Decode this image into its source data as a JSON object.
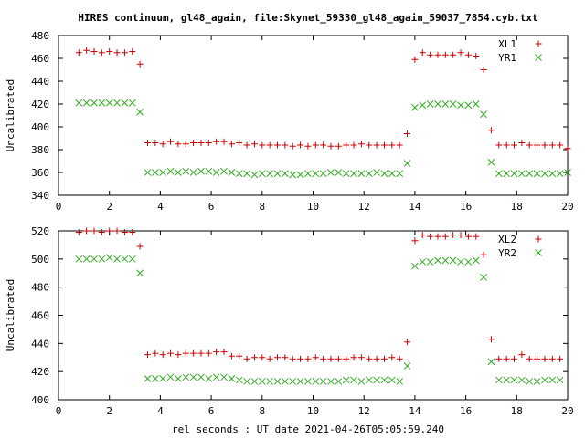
{
  "figure": {
    "title": "HIRES continuum, gl48_again, file:Skynet_59330_gl48_again_59037_7854.cyb.txt",
    "xlabel": "rel seconds : UT date 2021-04-26T05:05:59.240"
  },
  "colors": {
    "red_series": "#cc0000",
    "green_series": "#33aa22",
    "frame": "#000000"
  },
  "chart_data": [
    {
      "type": "scatter",
      "ylabel": "Uncalibrated",
      "xlim": [
        0,
        20
      ],
      "ylim": [
        340,
        480
      ],
      "xticks": [
        0,
        2,
        4,
        6,
        8,
        10,
        12,
        14,
        16,
        18,
        20
      ],
      "yticks": [
        340,
        360,
        380,
        400,
        420,
        440,
        460,
        480
      ],
      "legend_position": "top-right",
      "series": [
        {
          "name": "XL1",
          "marker": "plus",
          "color": "#cc0000",
          "x": [
            0.8,
            1.1,
            1.4,
            1.7,
            2.0,
            2.3,
            2.6,
            2.9,
            3.2,
            3.5,
            3.8,
            4.1,
            4.4,
            4.7,
            5.0,
            5.3,
            5.6,
            5.9,
            6.2,
            6.5,
            6.8,
            7.1,
            7.4,
            7.7,
            8.0,
            8.3,
            8.6,
            8.9,
            9.2,
            9.5,
            9.8,
            10.1,
            10.4,
            10.7,
            11.0,
            11.3,
            11.6,
            11.9,
            12.2,
            12.5,
            12.8,
            13.1,
            13.4,
            13.7,
            14.0,
            14.3,
            14.6,
            14.9,
            15.2,
            15.5,
            15.8,
            16.1,
            16.4,
            16.7,
            17.0,
            17.3,
            17.6,
            17.9,
            18.2,
            18.5,
            18.8,
            19.1,
            19.4,
            19.7,
            20.0
          ],
          "y": [
            465,
            467,
            466,
            465,
            466,
            465,
            465,
            466,
            455,
            386,
            386,
            385,
            387,
            385,
            385,
            386,
            386,
            386,
            387,
            387,
            385,
            386,
            384,
            385,
            384,
            384,
            384,
            384,
            383,
            384,
            383,
            384,
            384,
            383,
            383,
            384,
            384,
            385,
            384,
            384,
            384,
            384,
            384,
            394,
            459,
            465,
            463,
            463,
            463,
            463,
            465,
            463,
            462,
            450,
            397,
            384,
            384,
            384,
            386,
            384,
            384,
            384,
            384,
            384,
            381
          ]
        },
        {
          "name": "YR1",
          "marker": "cross",
          "color": "#33aa22",
          "x": [
            0.8,
            1.1,
            1.4,
            1.7,
            2.0,
            2.3,
            2.6,
            2.9,
            3.2,
            3.5,
            3.8,
            4.1,
            4.4,
            4.7,
            5.0,
            5.3,
            5.6,
            5.9,
            6.2,
            6.5,
            6.8,
            7.1,
            7.4,
            7.7,
            8.0,
            8.3,
            8.6,
            8.9,
            9.2,
            9.5,
            9.8,
            10.1,
            10.4,
            10.7,
            11.0,
            11.3,
            11.6,
            11.9,
            12.2,
            12.5,
            12.8,
            13.1,
            13.4,
            13.7,
            14.0,
            14.3,
            14.6,
            14.9,
            15.2,
            15.5,
            15.8,
            16.1,
            16.4,
            16.7,
            17.0,
            17.3,
            17.6,
            17.9,
            18.2,
            18.5,
            18.8,
            19.1,
            19.4,
            19.7,
            20.0
          ],
          "y": [
            421,
            421,
            421,
            421,
            421,
            421,
            421,
            421,
            413,
            360,
            360,
            360,
            361,
            360,
            361,
            360,
            361,
            361,
            360,
            361,
            360,
            359,
            359,
            358,
            359,
            359,
            359,
            359,
            358,
            358,
            359,
            359,
            359,
            360,
            360,
            359,
            359,
            359,
            359,
            360,
            359,
            359,
            359,
            368,
            417,
            419,
            420,
            420,
            420,
            420,
            419,
            419,
            420,
            411,
            369,
            359,
            359,
            359,
            359,
            359,
            359,
            359,
            359,
            359,
            360
          ]
        }
      ]
    },
    {
      "type": "scatter",
      "ylabel": "Uncalibrated",
      "xlim": [
        0,
        20
      ],
      "ylim": [
        400,
        520
      ],
      "xticks": [
        0,
        2,
        4,
        6,
        8,
        10,
        12,
        14,
        16,
        18,
        20
      ],
      "yticks": [
        400,
        420,
        440,
        460,
        480,
        500,
        520
      ],
      "legend_position": "top-right",
      "series": [
        {
          "name": "XL2",
          "marker": "plus",
          "color": "#cc0000",
          "x": [
            0.8,
            1.1,
            1.4,
            1.7,
            2.0,
            2.3,
            2.6,
            2.9,
            3.2,
            3.5,
            3.8,
            4.1,
            4.4,
            4.7,
            5.0,
            5.3,
            5.6,
            5.9,
            6.2,
            6.5,
            6.8,
            7.1,
            7.4,
            7.7,
            8.0,
            8.3,
            8.6,
            8.9,
            9.2,
            9.5,
            9.8,
            10.1,
            10.4,
            10.7,
            11.0,
            11.3,
            11.6,
            11.9,
            12.2,
            12.5,
            12.8,
            13.1,
            13.4,
            13.7,
            14.0,
            14.3,
            14.6,
            14.9,
            15.2,
            15.5,
            15.8,
            16.1,
            16.4,
            16.7,
            17.0,
            17.3,
            17.6,
            17.9,
            18.2,
            18.5,
            18.8,
            19.1,
            19.4,
            19.7
          ],
          "y": [
            519,
            520,
            520,
            519,
            520,
            520,
            519,
            519,
            509,
            432,
            433,
            432,
            433,
            432,
            433,
            433,
            433,
            433,
            434,
            434,
            431,
            431,
            429,
            430,
            430,
            429,
            430,
            430,
            429,
            429,
            429,
            430,
            429,
            429,
            429,
            429,
            430,
            430,
            429,
            429,
            429,
            430,
            429,
            441,
            513,
            517,
            516,
            516,
            516,
            517,
            517,
            516,
            516,
            503,
            443,
            429,
            429,
            429,
            432,
            429,
            429,
            429,
            429,
            429
          ]
        },
        {
          "name": "YR2",
          "marker": "cross",
          "color": "#33aa22",
          "x": [
            0.8,
            1.1,
            1.4,
            1.7,
            2.0,
            2.3,
            2.6,
            2.9,
            3.2,
            3.5,
            3.8,
            4.1,
            4.4,
            4.7,
            5.0,
            5.3,
            5.6,
            5.9,
            6.2,
            6.5,
            6.8,
            7.1,
            7.4,
            7.7,
            8.0,
            8.3,
            8.6,
            8.9,
            9.2,
            9.5,
            9.8,
            10.1,
            10.4,
            10.7,
            11.0,
            11.3,
            11.6,
            11.9,
            12.2,
            12.5,
            12.8,
            13.1,
            13.4,
            13.7,
            14.0,
            14.3,
            14.6,
            14.9,
            15.2,
            15.5,
            15.8,
            16.1,
            16.4,
            16.7,
            17.0,
            17.3,
            17.6,
            17.9,
            18.2,
            18.5,
            18.8,
            19.1,
            19.4,
            19.7
          ],
          "y": [
            500,
            500,
            500,
            500,
            501,
            500,
            500,
            500,
            490,
            415,
            415,
            415,
            416,
            415,
            416,
            416,
            416,
            415,
            416,
            416,
            415,
            414,
            413,
            413,
            413,
            413,
            413,
            413,
            413,
            413,
            413,
            413,
            413,
            413,
            413,
            414,
            414,
            413,
            414,
            414,
            414,
            414,
            413,
            424,
            495,
            498,
            498,
            499,
            499,
            499,
            498,
            498,
            499,
            487,
            427,
            414,
            414,
            414,
            414,
            413,
            413,
            414,
            414,
            414
          ]
        }
      ]
    }
  ]
}
